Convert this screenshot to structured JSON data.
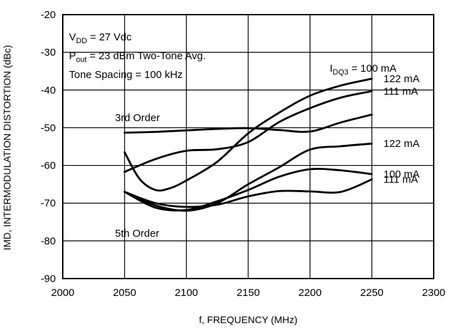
{
  "chart_data": {
    "type": "line",
    "xlabel": "f, FREQUENCY (MHz)",
    "ylabel": "IMD, INTERMODULATION DISTORTION (dBc)",
    "xlim": [
      2000,
      2300
    ],
    "ylim": [
      -90,
      -20
    ],
    "xticks": [
      "2000",
      "2050",
      "2100",
      "2150",
      "2200",
      "2250",
      "2300"
    ],
    "yticks": [
      "-20",
      "-30",
      "-40",
      "-50",
      "-60",
      "-70",
      "-80",
      "-90"
    ],
    "grid": true,
    "conditions": {
      "line1_main": "V",
      "line1_sub": "DD",
      "line1_rest": " = 27 Vdc",
      "line2_main": "P",
      "line2_sub": "out",
      "line2_rest": " = 23 dBm Two-Tone Avg.",
      "line3": "Tone Spacing = 100 kHz"
    },
    "idq_header": {
      "main": "I",
      "sub": "DQ3",
      "rest": " = 100 mA"
    },
    "group_labels": {
      "third": "3rd Order",
      "fifth": "5th Order"
    },
    "series": [
      {
        "order": "3rd",
        "label": "",
        "x": [
          2050,
          2075,
          2100,
          2125,
          2150,
          2175,
          2200,
          2225,
          2250
        ],
        "y": [
          -51.3,
          -51.1,
          -50.7,
          -50.3,
          -50.1,
          -50.6,
          -51.0,
          -48.6,
          -46.5
        ]
      },
      {
        "order": "3rd",
        "label": "111 mA",
        "x": [
          2050,
          2075,
          2100,
          2125,
          2150,
          2175,
          2200,
          2225,
          2250
        ],
        "y": [
          -61.7,
          -58.3,
          -56.1,
          -55.7,
          -53.8,
          -48.5,
          -44.8,
          -42.0,
          -40.3
        ]
      },
      {
        "order": "3rd",
        "label": "122 mA",
        "x": [
          2050,
          2062,
          2075,
          2087,
          2100,
          2125,
          2150,
          2175,
          2200,
          2225,
          2250
        ],
        "y": [
          -56.5,
          -63.5,
          -66.5,
          -66.0,
          -64.0,
          -59.0,
          -51.5,
          -46.0,
          -41.5,
          -38.8,
          -37.0
        ]
      },
      {
        "order": "5th",
        "label": "122 mA",
        "x": [
          2050,
          2075,
          2100,
          2125,
          2150,
          2175,
          2200,
          2225,
          2250
        ],
        "y": [
          -67.0,
          -70.6,
          -72.0,
          -70.0,
          -65.0,
          -60.5,
          -55.8,
          -54.9,
          -54.2
        ]
      },
      {
        "order": "5th",
        "label": "100 mA",
        "x": [
          2050,
          2075,
          2100,
          2125,
          2150,
          2175,
          2200,
          2225,
          2250
        ],
        "y": [
          -67.0,
          -71.2,
          -71.8,
          -69.5,
          -66.5,
          -63.0,
          -61.0,
          -61.3,
          -62.3
        ]
      },
      {
        "order": "5th",
        "label": "111 mA",
        "x": [
          2050,
          2075,
          2100,
          2125,
          2150,
          2175,
          2200,
          2225,
          2250
        ],
        "y": [
          -67.0,
          -70.0,
          -71.0,
          -70.4,
          -68.2,
          -66.8,
          -66.9,
          -67.0,
          -63.7
        ]
      }
    ]
  }
}
